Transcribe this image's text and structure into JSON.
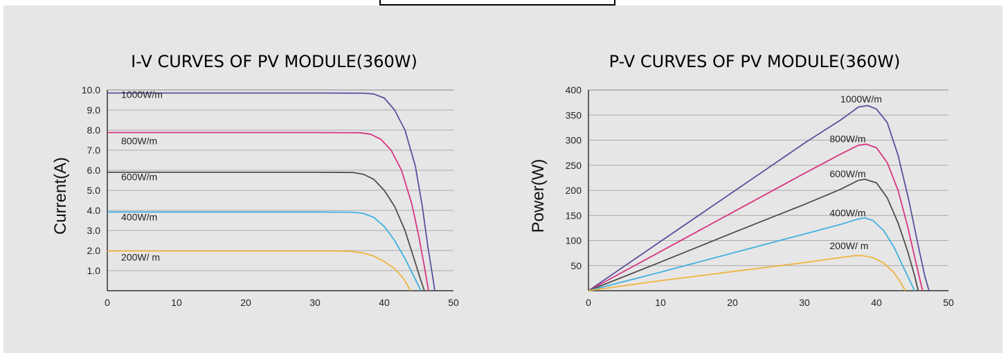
{
  "colors": {
    "title": "#2b8fd3",
    "grid": "#aaaaaa",
    "axis": "#333333",
    "s1000": "#5a4f9c",
    "s800": "#d6357f",
    "s600": "#4d4d4d",
    "s400": "#3fb0e0",
    "s200": "#f0b43c"
  },
  "chart_data": [
    {
      "type": "line",
      "title": "I-V CURVES OF PV MODULE(360W)",
      "xlabel": "",
      "ylabel": "Current(A)",
      "xlim": [
        0,
        50
      ],
      "ylim": [
        0,
        10
      ],
      "grid": true,
      "x_ticks": [
        "0",
        "10",
        "20",
        "30",
        "40",
        "50"
      ],
      "y_ticks": [
        "1.0",
        "2.0",
        "3.0",
        "4.0",
        "5.0",
        "6.0",
        "7.0",
        "8.0",
        "9.0",
        "10.0"
      ],
      "series": [
        {
          "name": "1000W/m",
          "color_key": "s1000",
          "label_pos": [
            2,
            9.6
          ],
          "points": [
            [
              0,
              9.85
            ],
            [
              10,
              9.85
            ],
            [
              20,
              9.85
            ],
            [
              30,
              9.85
            ],
            [
              37,
              9.84
            ],
            [
              38.5,
              9.8
            ],
            [
              40,
              9.6
            ],
            [
              41.5,
              9.0
            ],
            [
              43,
              8.0
            ],
            [
              44.5,
              6.2
            ],
            [
              45.5,
              4.2
            ],
            [
              46.3,
              2.2
            ],
            [
              47,
              0.7
            ],
            [
              47.3,
              0
            ]
          ]
        },
        {
          "name": "800W/m",
          "color_key": "s800",
          "label_pos": [
            2,
            7.3
          ],
          "points": [
            [
              0,
              7.88
            ],
            [
              10,
              7.88
            ],
            [
              20,
              7.88
            ],
            [
              30,
              7.88
            ],
            [
              36.5,
              7.87
            ],
            [
              38,
              7.8
            ],
            [
              39.5,
              7.55
            ],
            [
              41,
              7.0
            ],
            [
              42.5,
              6.0
            ],
            [
              44,
              4.3
            ],
            [
              45,
              2.7
            ],
            [
              45.8,
              1.2
            ],
            [
              46.4,
              0
            ]
          ]
        },
        {
          "name": "600W/m",
          "color_key": "s600",
          "label_pos": [
            2,
            5.5
          ],
          "points": [
            [
              0,
              5.9
            ],
            [
              10,
              5.9
            ],
            [
              20,
              5.9
            ],
            [
              30,
              5.9
            ],
            [
              35.5,
              5.89
            ],
            [
              37,
              5.8
            ],
            [
              38.5,
              5.55
            ],
            [
              40,
              5.0
            ],
            [
              41.5,
              4.2
            ],
            [
              43,
              3.0
            ],
            [
              44.3,
              1.6
            ],
            [
              45.3,
              0.5
            ],
            [
              45.8,
              0
            ]
          ]
        },
        {
          "name": "400W/m",
          "color_key": "s400",
          "label_pos": [
            2,
            3.5
          ],
          "points": [
            [
              0,
              3.92
            ],
            [
              10,
              3.92
            ],
            [
              20,
              3.92
            ],
            [
              30,
              3.92
            ],
            [
              35.5,
              3.91
            ],
            [
              37,
              3.85
            ],
            [
              38.5,
              3.65
            ],
            [
              40,
              3.2
            ],
            [
              41.5,
              2.5
            ],
            [
              43,
              1.6
            ],
            [
              44.3,
              0.7
            ],
            [
              45.3,
              0
            ]
          ]
        },
        {
          "name": "200W/ m",
          "color_key": "s200",
          "label_pos": [
            2,
            1.5
          ],
          "points": [
            [
              0,
              1.98
            ],
            [
              10,
              1.98
            ],
            [
              20,
              1.98
            ],
            [
              30,
              1.98
            ],
            [
              35,
              1.97
            ],
            [
              37,
              1.88
            ],
            [
              38.5,
              1.72
            ],
            [
              40,
              1.45
            ],
            [
              41.5,
              1.1
            ],
            [
              42.8,
              0.6
            ],
            [
              43.8,
              0
            ]
          ]
        }
      ]
    },
    {
      "type": "line",
      "title": "P-V CURVES OF PV MODULE(360W)",
      "xlabel": "",
      "ylabel": "Power(W)",
      "xlim": [
        0,
        50
      ],
      "ylim": [
        0,
        400
      ],
      "grid": true,
      "x_ticks": [
        "0",
        "10",
        "20",
        "30",
        "40",
        "50"
      ],
      "y_ticks": [
        "50",
        "100",
        "150",
        "200",
        "250",
        "300",
        "350",
        "400"
      ],
      "series": [
        {
          "name": "1000W/m",
          "color_key": "s1000",
          "label_pos": [
            35,
            375
          ],
          "points": [
            [
              0,
              0
            ],
            [
              10,
              98
            ],
            [
              20,
              196
            ],
            [
              30,
              294
            ],
            [
              35,
              340
            ],
            [
              37.5,
              366
            ],
            [
              38.8,
              369
            ],
            [
              40,
              362
            ],
            [
              41.5,
              335
            ],
            [
              43,
              270
            ],
            [
              44.5,
              180
            ],
            [
              45.8,
              90
            ],
            [
              46.7,
              30
            ],
            [
              47.3,
              0
            ]
          ]
        },
        {
          "name": "800W/m",
          "color_key": "s800",
          "label_pos": [
            33.5,
            296
          ],
          "points": [
            [
              0,
              0
            ],
            [
              10,
              78
            ],
            [
              20,
              156
            ],
            [
              30,
              234
            ],
            [
              35,
              272
            ],
            [
              37.5,
              290
            ],
            [
              38.6,
              292
            ],
            [
              40,
              285
            ],
            [
              41.5,
              255
            ],
            [
              43,
              200
            ],
            [
              44.3,
              130
            ],
            [
              45.5,
              55
            ],
            [
              46.4,
              0
            ]
          ]
        },
        {
          "name": "600W/m",
          "color_key": "s600",
          "label_pos": [
            33.5,
            226
          ],
          "points": [
            [
              0,
              0
            ],
            [
              10,
              57
            ],
            [
              20,
              115
            ],
            [
              30,
              172
            ],
            [
              35,
              202
            ],
            [
              37.5,
              220
            ],
            [
              38.4,
              222
            ],
            [
              40,
              215
            ],
            [
              41.5,
              185
            ],
            [
              43,
              135
            ],
            [
              44.3,
              80
            ],
            [
              45.3,
              30
            ],
            [
              45.8,
              0
            ]
          ]
        },
        {
          "name": "400W/m",
          "color_key": "s400",
          "label_pos": [
            33.5,
            148
          ],
          "points": [
            [
              0,
              0
            ],
            [
              10,
              37
            ],
            [
              20,
              75
            ],
            [
              30,
              113
            ],
            [
              35,
              132
            ],
            [
              37.5,
              143
            ],
            [
              38.4,
              145
            ],
            [
              39.5,
              140
            ],
            [
              41,
              120
            ],
            [
              42.5,
              85
            ],
            [
              43.8,
              45
            ],
            [
              44.8,
              15
            ],
            [
              45.3,
              0
            ]
          ]
        },
        {
          "name": "200W/ m",
          "color_key": "s200",
          "label_pos": [
            33.5,
            83
          ],
          "points": [
            [
              0,
              0
            ],
            [
              10,
              20
            ],
            [
              20,
              38
            ],
            [
              30,
              56
            ],
            [
              35,
              66
            ],
            [
              37,
              70
            ],
            [
              38,
              70
            ],
            [
              39.5,
              66
            ],
            [
              41,
              55
            ],
            [
              42.3,
              38
            ],
            [
              43.3,
              18
            ],
            [
              44,
              0
            ]
          ]
        }
      ]
    }
  ]
}
